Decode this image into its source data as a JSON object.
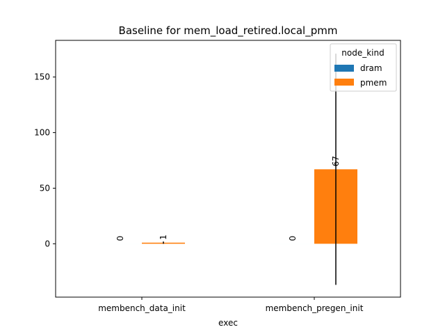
{
  "chart_data": {
    "type": "bar",
    "title": "Baseline for mem_load_retired.local_pmm",
    "xlabel": "exec",
    "ylabel": "",
    "categories": [
      "membench_data_init",
      "membench_pregen_init"
    ],
    "series": [
      {
        "name": "dram",
        "values": [
          0,
          0
        ],
        "color": "#1f77b4",
        "bar_labels": [
          "0",
          "0"
        ]
      },
      {
        "name": "pmem",
        "values": [
          1,
          67
        ],
        "color": "#ff7f0e",
        "bar_labels": [
          "1",
          "67"
        ],
        "error_low": [
          0,
          -37
        ],
        "error_high": [
          2,
          171
        ]
      }
    ],
    "ylim": [
      -48,
      183
    ],
    "yticks": [
      0,
      50,
      100,
      150
    ],
    "legend": {
      "title": "node_kind",
      "placement": "top-right"
    },
    "grid": false
  }
}
